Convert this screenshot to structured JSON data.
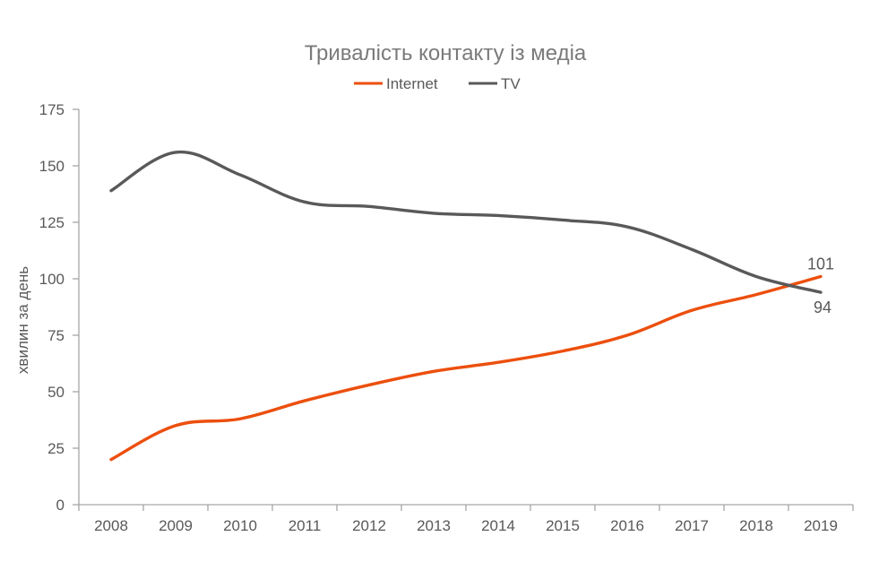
{
  "chart_data": {
    "type": "line",
    "title": "Тривалість контакту із медіа",
    "xlabel": "",
    "ylabel": "хвилин за день",
    "ylim": [
      0,
      175
    ],
    "yticks": [
      0,
      25,
      50,
      75,
      100,
      125,
      150,
      175
    ],
    "categories": [
      "2008",
      "2009",
      "2010",
      "2011",
      "2012",
      "2013",
      "2014",
      "2015",
      "2016",
      "2017",
      "2018",
      "2019"
    ],
    "series": [
      {
        "name": "Internet",
        "color": "#ec4f0d",
        "values": [
          20,
          35,
          38,
          46,
          53,
          59,
          63,
          68,
          75,
          86,
          93,
          101
        ],
        "end_label": "101"
      },
      {
        "name": "TV",
        "color": "#595959",
        "values": [
          139,
          156,
          146,
          134,
          132,
          129,
          128,
          126,
          123,
          113,
          101,
          94
        ],
        "end_label": "94"
      }
    ],
    "legend": {
      "position": "top-center"
    }
  }
}
